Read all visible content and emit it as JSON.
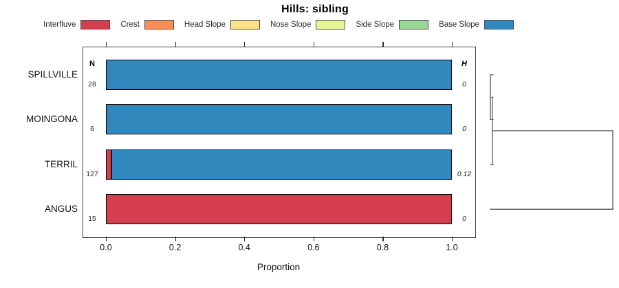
{
  "title": "Hills: sibling",
  "legend": {
    "items": [
      {
        "label": "Interfluve",
        "color": "#D53E4F"
      },
      {
        "label": "Crest",
        "color": "#FC8D59"
      },
      {
        "label": "Head Slope",
        "color": "#FEE08B"
      },
      {
        "label": "Nose Slope",
        "color": "#E6F598"
      },
      {
        "label": "Side Slope",
        "color": "#99D594"
      },
      {
        "label": "Base Slope",
        "color": "#3288BD"
      }
    ]
  },
  "columns": {
    "n_header": "N",
    "h_header": "H"
  },
  "axis": {
    "xlabel": "Proportion",
    "tick_labels": [
      "0.0",
      "0.2",
      "0.4",
      "0.6",
      "0.8",
      "1.0"
    ],
    "tick_values": [
      0,
      0.2,
      0.4,
      0.6,
      0.8,
      1.0
    ]
  },
  "chart_data": {
    "type": "bar",
    "orientation": "horizontal",
    "stacked": true,
    "title": "Hills: sibling",
    "xlabel": "Proportion",
    "xlim": [
      0,
      1
    ],
    "grid": false,
    "categories": [
      "SPILLVILLE",
      "MOINGONA",
      "TERRIL",
      "ANGUS"
    ],
    "n_values": [
      "28",
      "6",
      "127",
      "15"
    ],
    "h_values": [
      "0",
      "0",
      "0.12",
      "0"
    ],
    "series": [
      {
        "name": "Interfluve",
        "color": "#D53E4F",
        "values": [
          0,
          0,
          0.016,
          1.0
        ]
      },
      {
        "name": "Crest",
        "color": "#FC8D59",
        "values": [
          0,
          0,
          0,
          0
        ]
      },
      {
        "name": "Head Slope",
        "color": "#FEE08B",
        "values": [
          0,
          0,
          0,
          0
        ]
      },
      {
        "name": "Nose Slope",
        "color": "#E6F598",
        "values": [
          0,
          0,
          0,
          0
        ]
      },
      {
        "name": "Side Slope",
        "color": "#99D594",
        "values": [
          0,
          0,
          0,
          0
        ]
      },
      {
        "name": "Base Slope",
        "color": "#3288BD",
        "values": [
          1.0,
          1.0,
          0.984,
          0
        ]
      }
    ],
    "dendrogram": {
      "line_color": "#565656",
      "max_height": 1.0,
      "merges": [
        {
          "children": [
            "leaf:0",
            "leaf:1"
          ],
          "height": 0
        },
        {
          "children": [
            "merge:0",
            "leaf:2"
          ],
          "height": 0.016
        },
        {
          "children": [
            "merge:1",
            "leaf:3"
          ],
          "height": 1.0
        }
      ]
    }
  }
}
